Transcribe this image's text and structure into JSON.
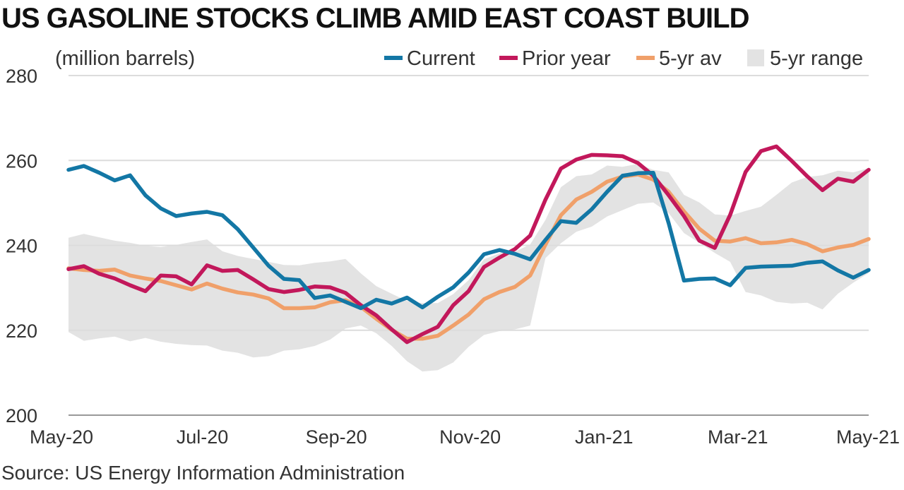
{
  "title": "US GASOLINE STOCKS CLIMB AMID EAST COAST BUILD",
  "source": "Source: US Energy Information Administration",
  "colors": {
    "current": "#1377a5",
    "prior_year": "#c2185b",
    "avg5": "#f0a06a",
    "range5": "#e3e3e3",
    "grid": "#dcdcdc"
  },
  "chart_data": {
    "type": "line",
    "ylabel": "(million barrels)",
    "ylim": [
      200,
      280
    ],
    "yticks": [
      200,
      220,
      240,
      260,
      280
    ],
    "xlim": [
      0,
      52
    ],
    "xticks": [
      {
        "x": 0,
        "label": "May-20"
      },
      {
        "x": 8.7,
        "label": "Jul-20"
      },
      {
        "x": 17.4,
        "label": "Sep-20"
      },
      {
        "x": 26.1,
        "label": "Nov-20"
      },
      {
        "x": 34.8,
        "label": "Jan-21"
      },
      {
        "x": 43.5,
        "label": "Mar-21"
      },
      {
        "x": 52,
        "label": "May-21"
      }
    ],
    "grid": "horizontal",
    "legend_position": "top-right",
    "series": [
      {
        "key": "current",
        "name": "Current",
        "values": [
          257.8,
          258.7,
          257.1,
          255.3,
          256.5,
          251.8,
          248.7,
          246.9,
          247.5,
          247.9,
          247.1,
          243.8,
          239.5,
          235.2,
          232.1,
          231.8,
          227.6,
          228.2,
          226.7,
          225.2,
          227.2,
          226.3,
          227.7,
          225.4,
          227.9,
          230.1,
          233.6,
          237.9,
          238.9,
          238.0,
          236.7,
          241.3,
          245.7,
          245.3,
          248.5,
          252.6,
          256.4,
          257.0,
          257.1,
          245.2,
          231.7,
          232.1,
          232.2,
          230.6,
          234.7,
          235.0,
          235.1,
          235.2,
          235.9,
          236.2,
          234.1,
          232.4,
          234.2
        ]
      },
      {
        "key": "prior_year",
        "name": "Prior year",
        "values": [
          234.4,
          235.1,
          233.3,
          232.2,
          230.6,
          229.2,
          232.9,
          232.7,
          230.8,
          235.3,
          234.0,
          234.2,
          232.0,
          229.7,
          229.0,
          229.5,
          230.3,
          230.1,
          228.8,
          225.9,
          223.5,
          220.2,
          217.2,
          219.1,
          220.8,
          225.9,
          229.2,
          234.9,
          237.1,
          239.1,
          242.3,
          250.8,
          258.1,
          260.2,
          261.3,
          261.2,
          261.0,
          259.4,
          256.4,
          251.8,
          246.9,
          241.1,
          239.4,
          247.2,
          257.3,
          262.2,
          263.3,
          259.9,
          256.3,
          253.0,
          255.7,
          255.0,
          257.8
        ]
      },
      {
        "key": "avg5",
        "name": "5-yr av",
        "values": [
          234.6,
          234.2,
          234.0,
          234.3,
          232.9,
          232.2,
          231.6,
          230.6,
          229.6,
          231.0,
          229.8,
          228.9,
          228.4,
          227.5,
          225.2,
          225.2,
          225.4,
          226.6,
          227.1,
          225.5,
          222.7,
          220.1,
          218.0,
          218.0,
          218.7,
          221.1,
          223.7,
          227.3,
          229.0,
          230.2,
          232.9,
          240.2,
          247.1,
          250.8,
          252.6,
          255.0,
          256.2,
          256.7,
          255.5,
          252.6,
          248.0,
          243.9,
          241.1,
          240.9,
          241.7,
          240.5,
          240.7,
          241.3,
          240.3,
          238.6,
          239.5,
          240.1,
          241.5
        ]
      },
      {
        "key": "range5",
        "name": "5-yr range",
        "upper": [
          241.8,
          242.7,
          241.9,
          241.1,
          240.6,
          239.9,
          239.6,
          240.1,
          240.8,
          241.4,
          238.6,
          237.5,
          236.8,
          236.1,
          235.4,
          235.3,
          235.9,
          236.2,
          236.8,
          233.4,
          230.4,
          228.6,
          226.9,
          226.4,
          226.4,
          228.5,
          231.8,
          236.7,
          238.1,
          238.5,
          240.2,
          246.0,
          253.7,
          256.3,
          256.7,
          258.8,
          258.5,
          259.2,
          257.8,
          257.2,
          251.9,
          250.1,
          247.3,
          247.0,
          248.1,
          249.1,
          251.9,
          254.8,
          256.1,
          256.5,
          257.6,
          257.2,
          258.2
        ],
        "lower": [
          219.6,
          217.5,
          218.1,
          218.5,
          217.4,
          218.2,
          217.3,
          216.8,
          216.5,
          216.4,
          215.2,
          214.7,
          213.6,
          213.9,
          215.2,
          215.5,
          216.3,
          217.8,
          220.4,
          221.1,
          219.3,
          216.3,
          212.7,
          210.3,
          210.6,
          212.4,
          216.1,
          218.9,
          219.8,
          220.2,
          221.1,
          237.0,
          240.5,
          243.2,
          244.4,
          246.8,
          248.3,
          249.8,
          250.1,
          247.6,
          242.9,
          240.6,
          238.2,
          236.1,
          229.0,
          228.2,
          226.7,
          226.3,
          226.5,
          224.9,
          228.6,
          231.2,
          233.5
        ]
      }
    ]
  }
}
